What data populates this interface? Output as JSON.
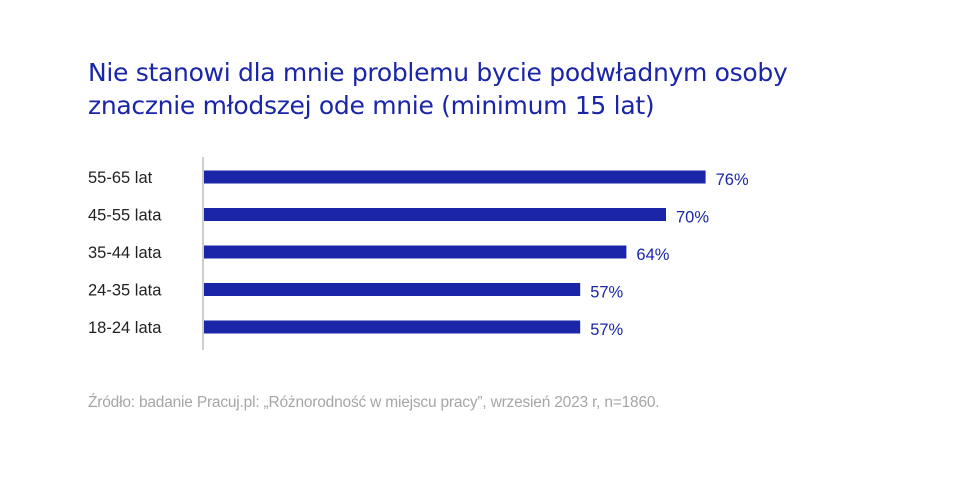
{
  "colors": {
    "title": "#1a25a8",
    "bar": "#1a25a8",
    "value_label": "#1a25a8",
    "category_label": "#222222",
    "axis": "#bdbdbd",
    "source": "#a6a6a6"
  },
  "chart_data": {
    "type": "bar",
    "orientation": "horizontal",
    "title_lines": [
      "Nie stanowi dla mnie problemu bycie podwładnym osoby",
      "znacznie młodszej ode mnie (minimum 15 lat)"
    ],
    "categories": [
      "55-65 lat",
      "45-55 lata",
      "35-44 lata",
      "24-35 lata",
      "18-24 lata"
    ],
    "values": [
      76,
      70,
      64,
      57,
      57
    ],
    "value_labels": [
      "76%",
      "70%",
      "64%",
      "57%",
      "57%"
    ],
    "unit": "%",
    "xlim": [
      0,
      100
    ],
    "grid": false,
    "legend": "none"
  },
  "source": "Źródło: badanie Pracuj.pl: „Różnorodność w miejscu pracy”, wrzesień 2023 r, n=1860."
}
